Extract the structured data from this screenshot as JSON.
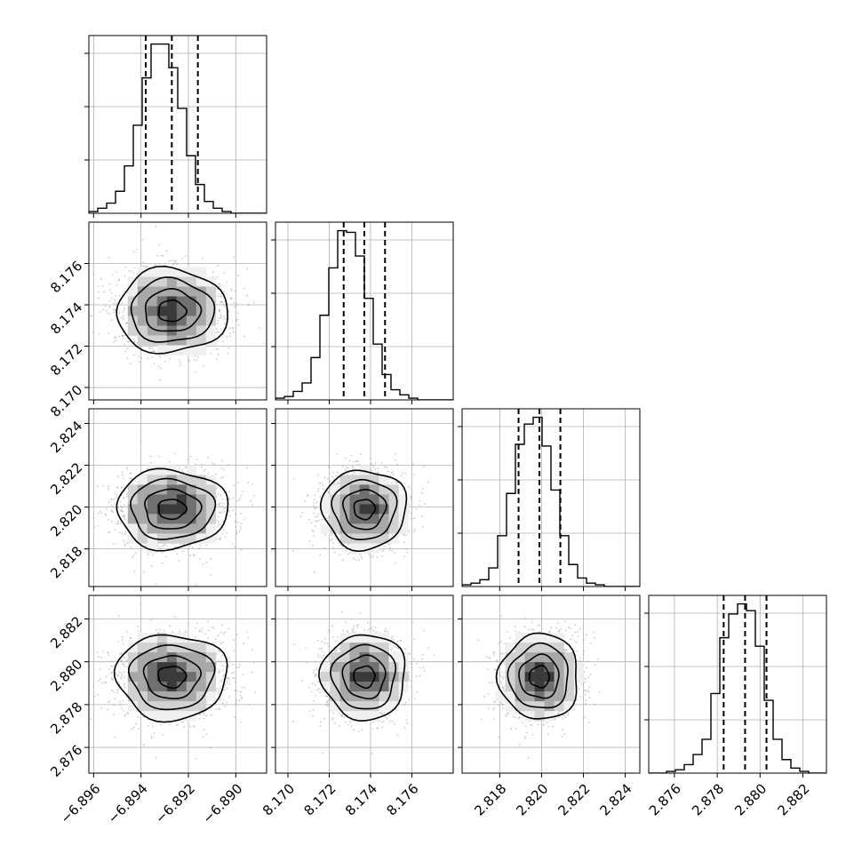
{
  "chart_data": {
    "type": "corner",
    "parameters": [
      {
        "range": [
          -6.8962,
          -6.8887
        ],
        "ticks": [
          -6.896,
          -6.894,
          -6.892,
          -6.89
        ],
        "tick_labels": [
          "−6.896",
          "−6.894",
          "−6.892",
          "−6.890"
        ],
        "mean": -6.8927,
        "sigma": 0.00117,
        "quantiles": [
          -6.8938,
          -6.8927,
          -6.8916
        ]
      },
      {
        "range": [
          8.1694,
          8.178
        ],
        "ticks": [
          8.17,
          8.172,
          8.174,
          8.176
        ],
        "tick_labels": [
          "8.170",
          "8.172",
          "8.174",
          "8.176"
        ],
        "mean": 8.1737,
        "sigma": 0.00102,
        "quantiles": [
          8.1727,
          8.1737,
          8.1747
        ]
      },
      {
        "range": [
          2.8162,
          2.8247
        ],
        "ticks": [
          2.818,
          2.82,
          2.822,
          2.824
        ],
        "tick_labels": [
          "2.818",
          "2.820",
          "2.822",
          "2.824"
        ],
        "mean": 2.8199,
        "sigma": 0.00095,
        "quantiles": [
          2.8189,
          2.8199,
          2.8209
        ]
      },
      {
        "range": [
          2.8748,
          2.8831
        ],
        "ticks": [
          2.876,
          2.878,
          2.88,
          2.882
        ],
        "tick_labels": [
          "2.876",
          "2.878",
          "2.880",
          "2.882"
        ],
        "mean": 2.8793,
        "sigma": 0.001,
        "quantiles": [
          2.8783,
          2.8793,
          2.8803
        ]
      }
    ],
    "histograms": [
      {
        "counts": [
          1,
          3,
          6,
          13,
          28,
          52,
          80,
          100,
          100,
          86,
          62,
          34,
          17,
          7,
          3,
          1,
          0,
          0,
          0,
          0
        ]
      },
      {
        "counts": [
          1,
          2,
          5,
          10,
          25,
          50,
          78,
          100,
          99,
          85,
          60,
          33,
          15,
          6,
          3,
          1,
          0,
          0,
          0,
          0
        ]
      },
      {
        "counts": [
          1,
          2,
          4,
          11,
          30,
          55,
          84,
          96,
          100,
          83,
          57,
          30,
          13,
          5,
          2,
          1,
          0,
          0,
          0,
          0
        ]
      },
      {
        "counts": [
          0,
          0,
          1,
          2,
          5,
          11,
          20,
          47,
          80,
          94,
          100,
          96,
          75,
          43,
          20,
          8,
          3,
          1,
          0,
          0
        ]
      }
    ],
    "grid": true,
    "contour_levels_sigma": [
      0.5,
      1.0,
      1.5,
      2.0
    ],
    "colors": {
      "line": "#000000",
      "quantile": "#000000",
      "scatter": "#9e9e9e",
      "grid": "#b0b0b0"
    }
  }
}
